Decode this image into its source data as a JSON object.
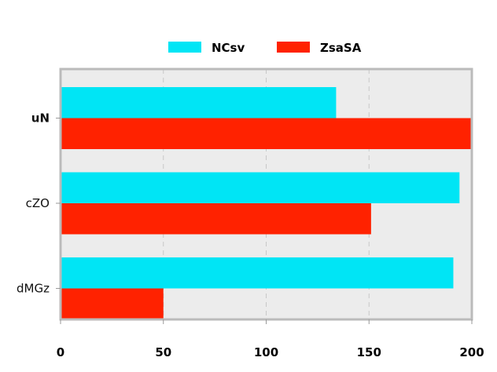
{
  "chart_data": {
    "type": "bar",
    "orientation": "horizontal",
    "categories": [
      "uN",
      "cZO",
      "dMGz"
    ],
    "series": [
      {
        "name": "NCsv",
        "values": [
          134,
          194,
          191
        ],
        "color": "#00e5f5"
      },
      {
        "name": "ZsaSA",
        "values": [
          200,
          151,
          50
        ],
        "color": "#ff2200"
      }
    ],
    "xlim": [
      0,
      200
    ],
    "xticks": [
      "0",
      "50",
      "100",
      "150",
      "200"
    ],
    "grid": true,
    "grid_style": "dashed-vertical",
    "legend_placement": "top-center",
    "plot_background": "#ececec",
    "frame_color": "#bbbbbb",
    "bold_category": "uN"
  }
}
